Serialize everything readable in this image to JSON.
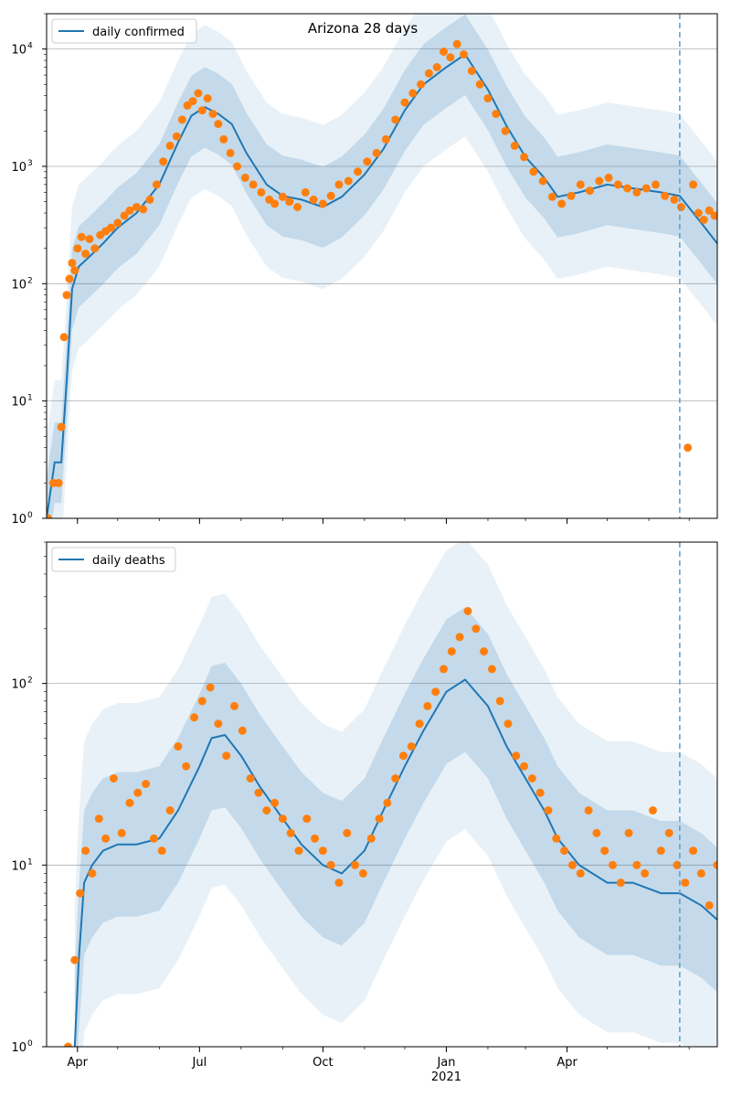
{
  "chart_data": [
    {
      "type": "line",
      "panel": "top",
      "title": "Arizona 28 days",
      "legend": {
        "label": "daily confirmed",
        "placement": "top-left"
      },
      "scale": "log",
      "ylim": [
        1,
        20000
      ],
      "yticks": [
        {
          "value": 1,
          "label": "10",
          "sup": "0"
        },
        {
          "value": 10,
          "label": "10",
          "sup": "1"
        },
        {
          "value": 100,
          "label": "10",
          "sup": "2"
        },
        {
          "value": 1000,
          "label": "10",
          "sup": "3"
        },
        {
          "value": 10000,
          "label": "10",
          "sup": "4"
        }
      ],
      "xlim": [
        "2020-03-09",
        "2021-07-22"
      ],
      "vline": "2021-06-24",
      "series": [
        {
          "kind": "model-line",
          "x": [
            "2020-03-09",
            "2020-03-15",
            "2020-03-20",
            "2020-03-24",
            "2020-03-28",
            "2020-04-02",
            "2020-04-10",
            "2020-04-20",
            "2020-05-01",
            "2020-05-15",
            "2020-06-01",
            "2020-06-15",
            "2020-06-25",
            "2020-07-05",
            "2020-07-15",
            "2020-07-25",
            "2020-08-05",
            "2020-08-20",
            "2020-09-01",
            "2020-09-15",
            "2020-10-01",
            "2020-10-15",
            "2020-11-01",
            "2020-11-15",
            "2020-12-01",
            "2020-12-15",
            "2021-01-01",
            "2021-01-15",
            "2021-02-01",
            "2021-02-15",
            "2021-03-01",
            "2021-03-15",
            "2021-03-25",
            "2021-04-10",
            "2021-05-01",
            "2021-05-20",
            "2021-06-10",
            "2021-06-24",
            "2021-07-10",
            "2021-07-22"
          ],
          "y": [
            1,
            3,
            3,
            15,
            90,
            140,
            170,
            220,
            300,
            400,
            700,
            1600,
            2700,
            3200,
            2800,
            2300,
            1300,
            700,
            560,
            520,
            450,
            550,
            850,
            1400,
            3000,
            5000,
            7000,
            9000,
            4500,
            2200,
            1200,
            800,
            550,
            600,
            700,
            650,
            600,
            560,
            330,
            220
          ]
        },
        {
          "kind": "observed-points",
          "x": [
            "2020-03-10",
            "2020-03-14",
            "2020-03-18",
            "2020-03-20",
            "2020-03-22",
            "2020-03-24",
            "2020-03-26",
            "2020-03-28",
            "2020-03-30",
            "2020-04-01",
            "2020-04-04",
            "2020-04-07",
            "2020-04-10",
            "2020-04-14",
            "2020-04-18",
            "2020-04-22",
            "2020-04-26",
            "2020-05-01",
            "2020-05-06",
            "2020-05-10",
            "2020-05-15",
            "2020-05-20",
            "2020-05-25",
            "2020-05-30",
            "2020-06-04",
            "2020-06-09",
            "2020-06-14",
            "2020-06-18",
            "2020-06-22",
            "2020-06-26",
            "2020-06-30",
            "2020-07-03",
            "2020-07-07",
            "2020-07-11",
            "2020-07-15",
            "2020-07-19",
            "2020-07-24",
            "2020-07-29",
            "2020-08-04",
            "2020-08-10",
            "2020-08-16",
            "2020-08-22",
            "2020-08-26",
            "2020-09-01",
            "2020-09-06",
            "2020-09-12",
            "2020-09-18",
            "2020-09-24",
            "2020-10-01",
            "2020-10-07",
            "2020-10-13",
            "2020-10-20",
            "2020-10-27",
            "2020-11-03",
            "2020-11-10",
            "2020-11-17",
            "2020-11-24",
            "2020-12-01",
            "2020-12-07",
            "2020-12-13",
            "2020-12-19",
            "2020-12-25",
            "2020-12-30",
            "2021-01-04",
            "2021-01-09",
            "2021-01-14",
            "2021-01-20",
            "2021-01-26",
            "2021-02-01",
            "2021-02-07",
            "2021-02-14",
            "2021-02-21",
            "2021-02-28",
            "2021-03-07",
            "2021-03-14",
            "2021-03-21",
            "2021-03-28",
            "2021-04-04",
            "2021-04-11",
            "2021-04-18",
            "2021-04-25",
            "2021-05-02",
            "2021-05-09",
            "2021-05-16",
            "2021-05-23",
            "2021-05-30",
            "2021-06-06",
            "2021-06-13",
            "2021-06-20",
            "2021-06-25",
            "2021-06-30",
            "2021-07-04",
            "2021-07-08",
            "2021-07-12",
            "2021-07-16",
            "2021-07-20"
          ],
          "y": [
            1,
            2,
            2,
            6,
            35,
            80,
            110,
            150,
            130,
            200,
            250,
            180,
            240,
            200,
            260,
            280,
            300,
            330,
            380,
            420,
            450,
            430,
            520,
            700,
            1100,
            1500,
            1800,
            2500,
            3300,
            3600,
            4200,
            3000,
            3800,
            2800,
            2300,
            1700,
            1300,
            1000,
            800,
            700,
            600,
            520,
            480,
            550,
            500,
            450,
            600,
            520,
            480,
            560,
            700,
            750,
            900,
            1100,
            1300,
            1700,
            2500,
            3500,
            4200,
            5000,
            6200,
            7000,
            9500,
            8500,
            11000,
            9000,
            6500,
            5000,
            3800,
            2800,
            2000,
            1500,
            1200,
            900,
            750,
            550,
            480,
            560,
            700,
            620,
            750,
            800,
            700,
            650,
            600,
            650,
            700,
            560,
            520,
            450,
            4,
            700,
            400,
            350,
            420,
            380
          ]
        }
      ]
    },
    {
      "type": "line",
      "panel": "bottom",
      "legend": {
        "label": "daily deaths",
        "placement": "top-left"
      },
      "scale": "log",
      "ylim": [
        1,
        600
      ],
      "yticks": [
        {
          "value": 1,
          "label": "10",
          "sup": "0"
        },
        {
          "value": 10,
          "label": "10",
          "sup": "1"
        },
        {
          "value": 100,
          "label": "10",
          "sup": "2"
        }
      ],
      "xlim": [
        "2020-03-09",
        "2021-07-22"
      ],
      "xticks": [
        {
          "x": "2020-04-01",
          "label": "Apr"
        },
        {
          "x": "2020-07-01",
          "label": "Jul"
        },
        {
          "x": "2020-10-01",
          "label": "Oct"
        },
        {
          "x": "2021-01-01",
          "label": "Jan",
          "sublabel": "2021"
        },
        {
          "x": "2021-04-01",
          "label": "Apr"
        }
      ],
      "vline": "2021-06-24",
      "series": [
        {
          "kind": "model-line",
          "x": [
            "2020-03-30",
            "2020-04-02",
            "2020-04-06",
            "2020-04-12",
            "2020-04-20",
            "2020-05-01",
            "2020-05-15",
            "2020-06-01",
            "2020-06-15",
            "2020-07-01",
            "2020-07-10",
            "2020-07-20",
            "2020-08-01",
            "2020-08-15",
            "2020-09-01",
            "2020-09-15",
            "2020-10-01",
            "2020-10-15",
            "2020-11-01",
            "2020-11-15",
            "2020-12-01",
            "2020-12-15",
            "2021-01-01",
            "2021-01-15",
            "2021-02-01",
            "2021-02-15",
            "2021-03-01",
            "2021-03-15",
            "2021-03-25",
            "2021-04-10",
            "2021-05-01",
            "2021-05-20",
            "2021-06-10",
            "2021-06-24",
            "2021-07-10",
            "2021-07-22"
          ],
          "y": [
            1,
            3,
            8,
            10,
            12,
            13,
            13,
            14,
            20,
            35,
            50,
            52,
            40,
            27,
            18,
            13,
            10,
            9,
            12,
            20,
            35,
            55,
            90,
            105,
            75,
            45,
            30,
            20,
            14,
            10,
            8,
            8,
            7,
            7,
            6,
            5
          ]
        },
        {
          "kind": "observed-points",
          "x": [
            "2020-03-25",
            "2020-03-30",
            "2020-04-03",
            "2020-04-07",
            "2020-04-12",
            "2020-04-17",
            "2020-04-22",
            "2020-04-28",
            "2020-05-04",
            "2020-05-10",
            "2020-05-16",
            "2020-05-22",
            "2020-05-28",
            "2020-06-03",
            "2020-06-09",
            "2020-06-15",
            "2020-06-21",
            "2020-06-27",
            "2020-07-03",
            "2020-07-09",
            "2020-07-15",
            "2020-07-21",
            "2020-07-27",
            "2020-08-02",
            "2020-08-08",
            "2020-08-14",
            "2020-08-20",
            "2020-08-26",
            "2020-09-01",
            "2020-09-07",
            "2020-09-13",
            "2020-09-19",
            "2020-09-25",
            "2020-10-01",
            "2020-10-07",
            "2020-10-13",
            "2020-10-19",
            "2020-10-25",
            "2020-10-31",
            "2020-11-06",
            "2020-11-12",
            "2020-11-18",
            "2020-11-24",
            "2020-11-30",
            "2020-12-06",
            "2020-12-12",
            "2020-12-18",
            "2020-12-24",
            "2020-12-30",
            "2021-01-05",
            "2021-01-11",
            "2021-01-17",
            "2021-01-23",
            "2021-01-29",
            "2021-02-04",
            "2021-02-10",
            "2021-02-16",
            "2021-02-22",
            "2021-02-28",
            "2021-03-06",
            "2021-03-12",
            "2021-03-18",
            "2021-03-24",
            "2021-03-30",
            "2021-04-05",
            "2021-04-11",
            "2021-04-17",
            "2021-04-23",
            "2021-04-29",
            "2021-05-05",
            "2021-05-11",
            "2021-05-17",
            "2021-05-23",
            "2021-05-29",
            "2021-06-04",
            "2021-06-10",
            "2021-06-16",
            "2021-06-22",
            "2021-06-28",
            "2021-07-04",
            "2021-07-10",
            "2021-07-16",
            "2021-07-22"
          ],
          "y": [
            1,
            3,
            7,
            12,
            9,
            18,
            14,
            30,
            15,
            22,
            25,
            28,
            14,
            12,
            20,
            45,
            35,
            65,
            80,
            95,
            60,
            40,
            75,
            55,
            30,
            25,
            20,
            22,
            18,
            15,
            12,
            18,
            14,
            12,
            10,
            8,
            15,
            10,
            9,
            14,
            18,
            22,
            30,
            40,
            45,
            60,
            75,
            90,
            120,
            150,
            180,
            250,
            200,
            150,
            120,
            80,
            60,
            40,
            35,
            30,
            25,
            20,
            14,
            12,
            10,
            9,
            20,
            15,
            12,
            10,
            8,
            15,
            10,
            9,
            20,
            12,
            15,
            10,
            8,
            12,
            9,
            6,
            10
          ]
        }
      ]
    }
  ]
}
